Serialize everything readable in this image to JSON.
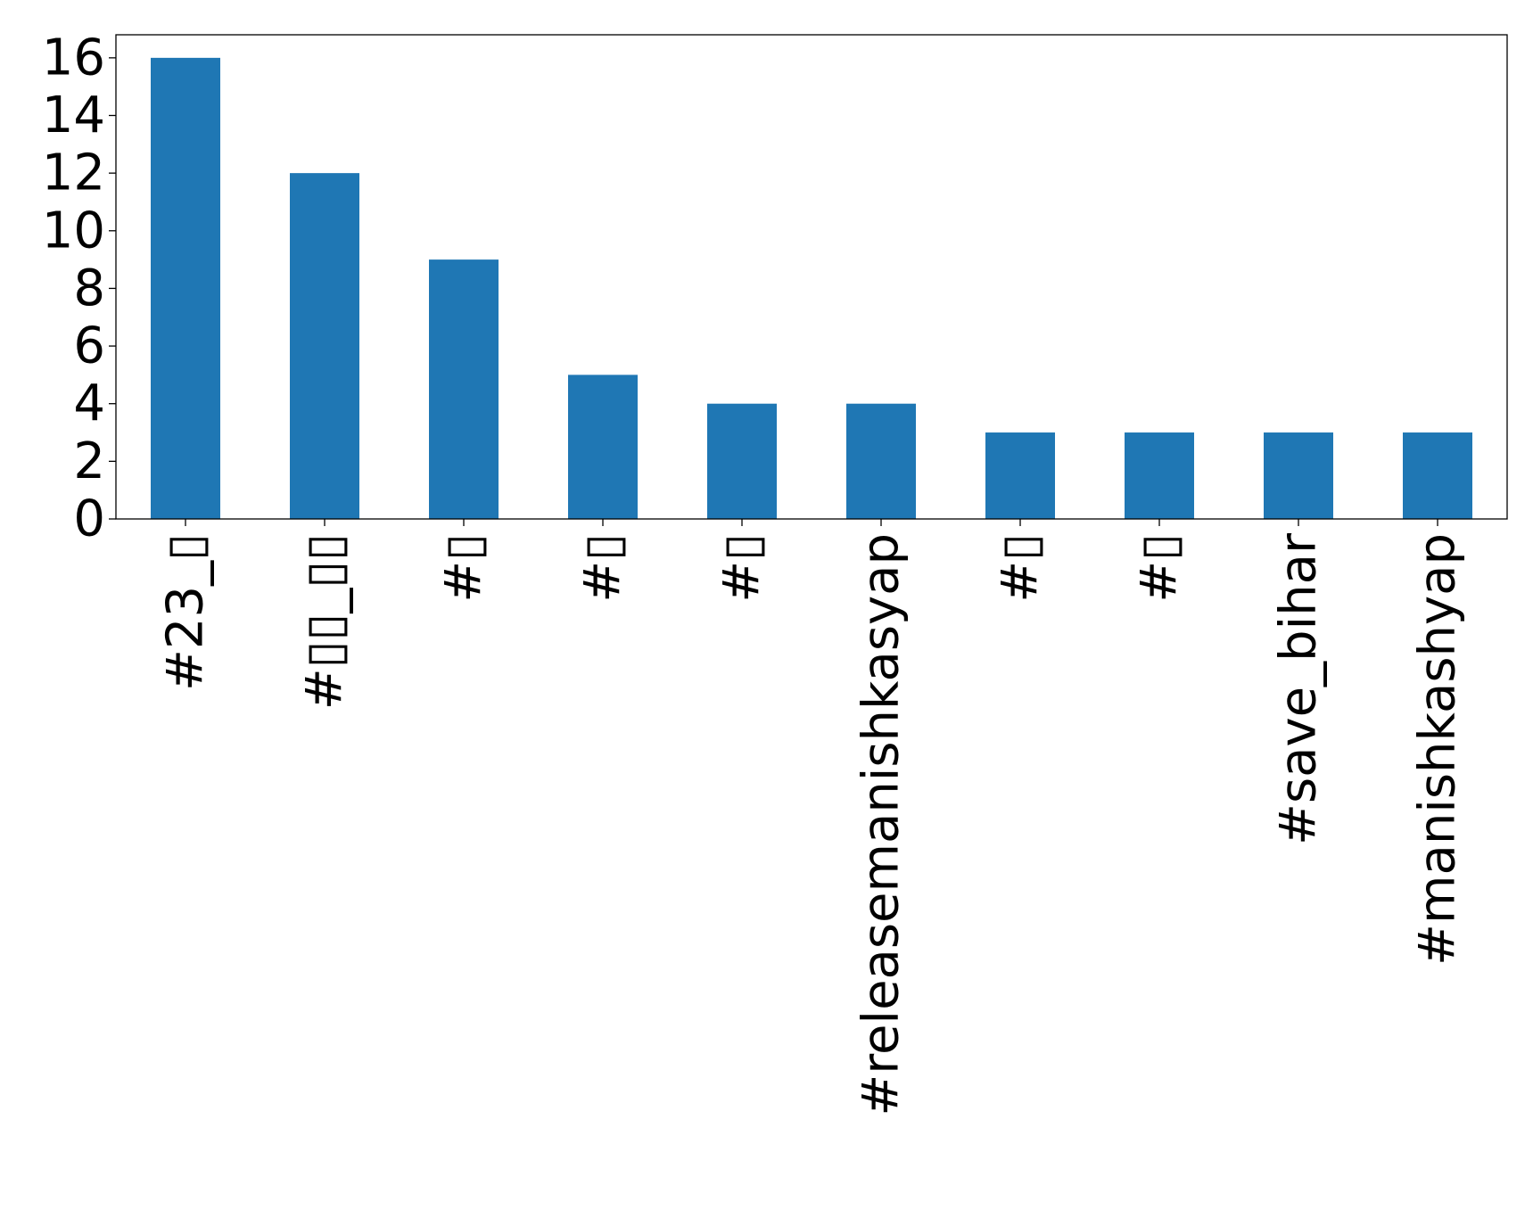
{
  "chart_data": {
    "type": "bar",
    "categories": [
      "#23_▯",
      "#▯▯_▯▯",
      "#▯",
      "#▯",
      "#▯",
      "#releasemanishkasyap",
      "#▯",
      "#▯",
      "#save_bihar",
      "#manishkashyap"
    ],
    "values": [
      16,
      12,
      9,
      5,
      4,
      4,
      3,
      3,
      3,
      3
    ],
    "title": "",
    "xlabel": "",
    "ylabel": "",
    "ylim": [
      0,
      16.8
    ],
    "yticks": [
      0,
      2,
      4,
      6,
      8,
      10,
      12,
      14,
      16
    ],
    "grid": false,
    "legend": "none",
    "bar_color": "#1f77b4"
  }
}
